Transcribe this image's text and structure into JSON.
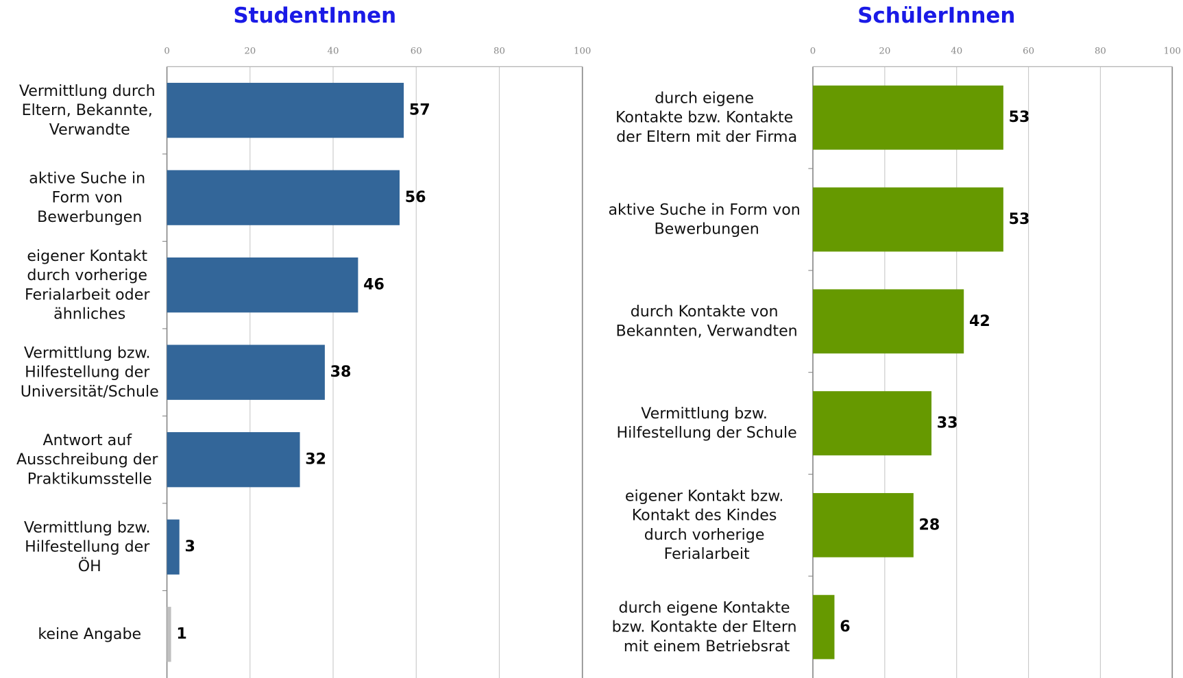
{
  "chart_data": [
    {
      "type": "bar",
      "orientation": "horizontal",
      "title": "StudentInnen",
      "categories": [
        "Vermittlung durch\nEltern, Bekannte,\nVerwandte",
        "aktive Suche in\nForm von\nBewerbungen",
        "eigener Kontakt\ndurch vorherige\nFerialarbeit oder\nähnliches",
        "Vermittlung bzw.\nHilfestellung der\nUniversität/Schule",
        "Antwort auf\nAusschreibung der\nPraktikumsstelle",
        "Vermittlung bzw.\nHilfestellung der\nÖH",
        "keine Angabe"
      ],
      "values": [
        57,
        56,
        46,
        38,
        32,
        3,
        1
      ],
      "colors": [
        "#336699",
        "#336699",
        "#336699",
        "#336699",
        "#336699",
        "#336699",
        "#c0c0c0"
      ],
      "xlim": [
        0,
        100
      ],
      "xticks": [
        0,
        20,
        40,
        60,
        80,
        100
      ],
      "grid": true
    },
    {
      "type": "bar",
      "orientation": "horizontal",
      "title": "SchülerInnen",
      "categories": [
        "durch eigene\nKontakte bzw. Kontakte\nder Eltern mit der Firma",
        "aktive Suche in Form von\nBewerbungen",
        "durch Kontakte von\nBekannten, Verwandten",
        "Vermittlung bzw.\nHilfestellung der Schule",
        "eigener Kontakt bzw.\nKontakt des Kindes\ndurch vorherige\nFerialarbeit",
        "durch eigene Kontakte\nbzw. Kontakte der Eltern\nmit einem Betriebsrat"
      ],
      "values": [
        53,
        53,
        42,
        33,
        28,
        6
      ],
      "colors": [
        "#669900",
        "#669900",
        "#669900",
        "#669900",
        "#669900",
        "#669900"
      ],
      "xlim": [
        0,
        100
      ],
      "xticks": [
        0,
        20,
        40,
        60,
        80,
        100
      ],
      "grid": true
    }
  ]
}
